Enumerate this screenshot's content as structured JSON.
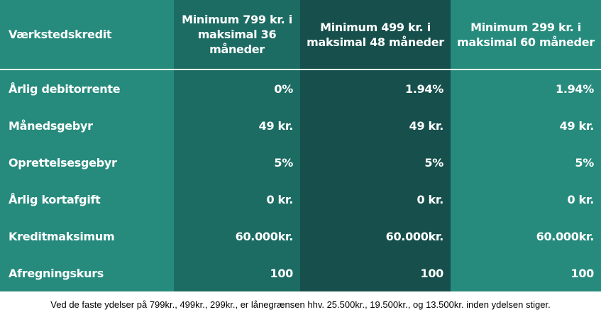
{
  "table": {
    "corner_label": "Værkstedskredit",
    "plans": [
      "Minimum 799 kr. i maksimal 36 måneder",
      "Minimum 499 kr. i maksimal 48 måneder",
      "Minimum 299 kr. i maksimal 60 måneder"
    ],
    "rows": [
      {
        "label": "Årlig debitorrente",
        "values": [
          "0%",
          "1.94%",
          "1.94%"
        ]
      },
      {
        "label": "Månedsgebyr",
        "values": [
          "49 kr.",
          "49 kr.",
          "49 kr."
        ]
      },
      {
        "label": "Oprettelsesgebyr",
        "values": [
          "5%",
          "5%",
          "5%"
        ]
      },
      {
        "label": "Årlig kortafgift",
        "values": [
          "0 kr.",
          "0 kr.",
          "0 kr."
        ]
      },
      {
        "label": "Kreditmaksimum",
        "values": [
          "60.000kr.",
          "60.000kr.",
          "60.000kr."
        ]
      },
      {
        "label": "Afregningskurs",
        "values": [
          "100",
          "100",
          "100"
        ]
      }
    ]
  },
  "footnote": "Ved de faste ydelser på 799kr., 499kr., 299kr., er lånegrænsen hhv. 25.500kr., 19.500kr., og 13.500kr. inden ydelsen stiger.",
  "colors": {
    "label_column": "#268b7d",
    "plan_1_column": "#1c6c63",
    "plan_2_column": "#164f4b",
    "plan_3_column": "#268b7d",
    "text": "#ffffff"
  }
}
